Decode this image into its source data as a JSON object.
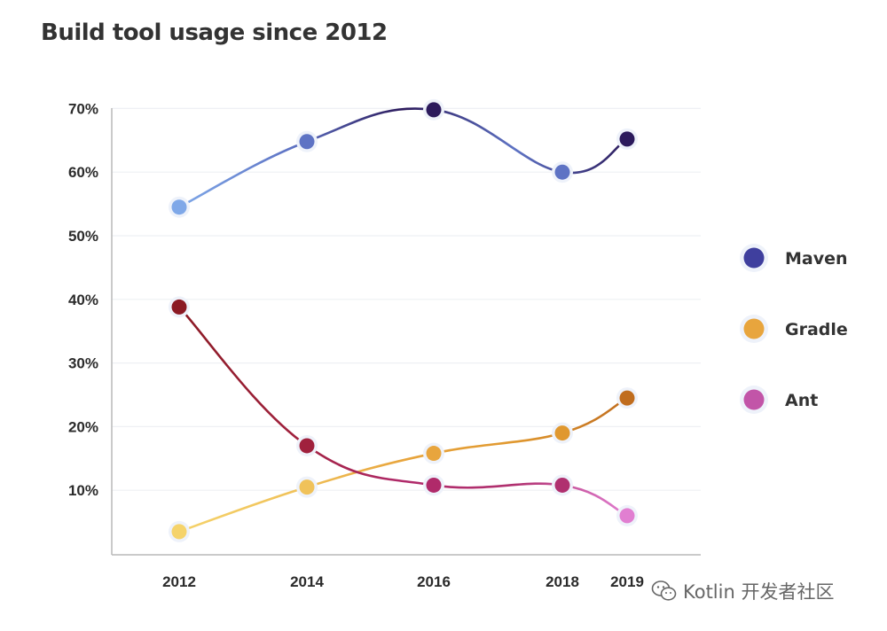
{
  "chart_data": {
    "type": "line",
    "title": "Build tool usage since 2012",
    "categories": [
      "2012",
      "2014",
      "2016",
      "2018",
      "2019"
    ],
    "x": [
      2012,
      2014,
      2016,
      2018,
      2019
    ],
    "y_ticks": [
      "10%",
      "20%",
      "30%",
      "40%",
      "50%",
      "60%",
      "70%"
    ],
    "y_tick_values": [
      10,
      20,
      30,
      40,
      50,
      60,
      70
    ],
    "ylim": [
      0,
      70
    ],
    "xlabel": "",
    "ylabel": "",
    "grid": true,
    "legend_position": "right",
    "series": [
      {
        "name": "Maven",
        "values": [
          54.5,
          64.8,
          69.8,
          60,
          65.2
        ],
        "color": "#3f3f9e",
        "light": "#7fa8e8",
        "dark": "#2c1a5c"
      },
      {
        "name": "Gradle",
        "values": [
          3.5,
          10.5,
          15.8,
          19,
          24.5
        ],
        "color": "#e8a53d",
        "light": "#f5d36b",
        "dark": "#c06d1e"
      },
      {
        "name": "Ant",
        "values": [
          38.8,
          17,
          10.8,
          10.8,
          6
        ],
        "color": "#c255a8",
        "light": "#e17fd1",
        "dark": "#8b1a24"
      }
    ]
  },
  "watermark": {
    "text": "Kotlin 开发者社区",
    "icon": "wechat-icon"
  }
}
